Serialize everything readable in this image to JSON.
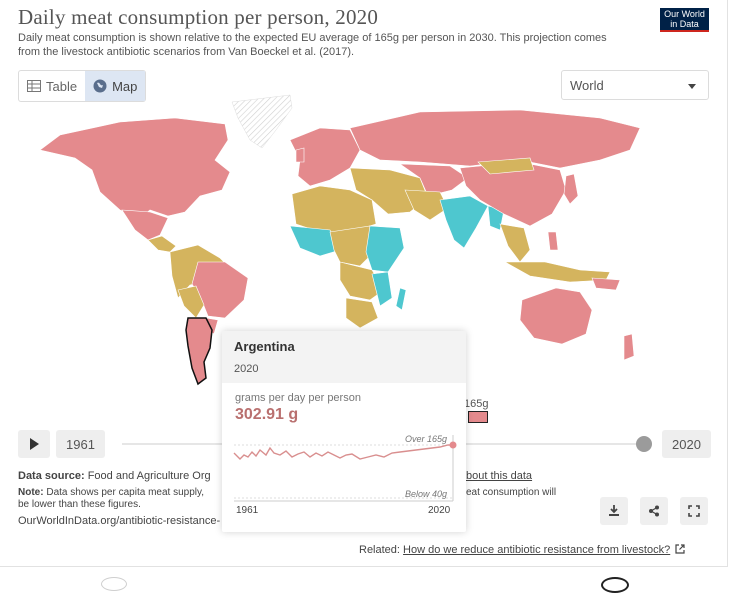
{
  "header": {
    "title": "Daily meat consumption per person, 2020",
    "subtitle": "Daily meat consumption is shown relative to the expected EU average of 165g per person in 2030. This projection comes from the livestock antibiotic scenarios from Van Boeckel et al. (2017).",
    "logo_line1": "Our World",
    "logo_line2": "in Data",
    "logo_color": "#002147"
  },
  "tabs": [
    {
      "label": "Table",
      "icon": "table-icon",
      "active": false
    },
    {
      "label": "Map",
      "icon": "globe-icon",
      "active": true
    }
  ],
  "region_select": {
    "value": "World"
  },
  "legend": {
    "label": "165g",
    "color": "#e48a8d"
  },
  "colors": {
    "over": "#e48a8d",
    "mid": "#d4b45e",
    "low": "#4ec7cf",
    "nodata": "#e6e6e6"
  },
  "timeline": {
    "start": "1961",
    "end": "2020",
    "position": 1.0
  },
  "footer": {
    "source_label": "Data source:",
    "source_text": "Food and Agriculture Org",
    "note_label": "Note:",
    "note_text_1": "Data shows per capita meat supply,",
    "note_text_2": "be lower than these figures.",
    "url": "OurWorldInData.org/antibiotic-resistance-",
    "about": "bout this data",
    "note_cont": "eat consumption will",
    "related_label": "Related:",
    "related_link": "How do we reduce antibiotic resistance from livestock?"
  },
  "tooltip": {
    "country": "Argentina",
    "year": "2020",
    "unit": "grams per day per person",
    "value": "302.91 g",
    "over_label": "Over 165g",
    "below_label": "Below 40g",
    "x_start": "1961",
    "x_end": "2020",
    "color": "#b9706f"
  }
}
